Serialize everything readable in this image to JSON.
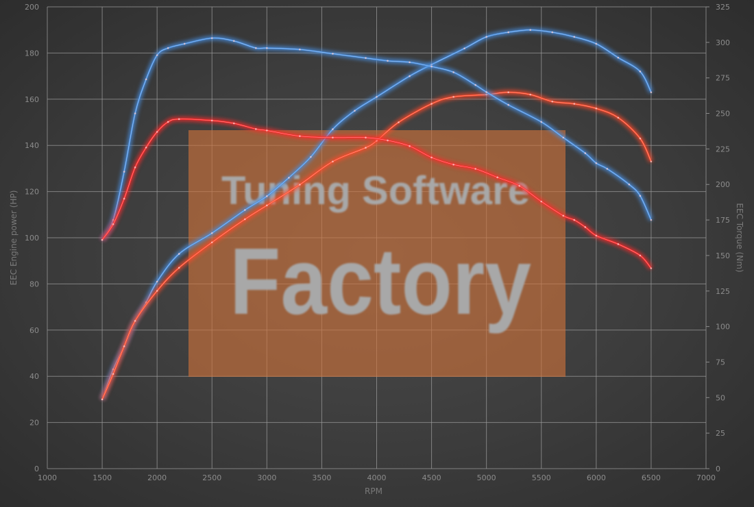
{
  "chart_data": {
    "type": "line",
    "title": "",
    "xlabel": "RPM",
    "ylabel": "EEC Engine power (HP)",
    "y2label": "EEC Torque (Nm)",
    "xlim": [
      1000,
      7000
    ],
    "ylim": [
      0,
      200
    ],
    "y2lim": [
      0,
      325
    ],
    "xticks": [
      1000,
      1500,
      2000,
      2500,
      3000,
      3500,
      4000,
      4500,
      5000,
      5500,
      6000,
      6500,
      7000
    ],
    "yticks": [
      0,
      20,
      40,
      60,
      80,
      100,
      120,
      140,
      160,
      180,
      200
    ],
    "y2ticks": [
      0,
      25,
      50,
      75,
      100,
      125,
      150,
      175,
      200,
      225,
      250,
      275,
      300,
      325
    ],
    "grid": true,
    "series": [
      {
        "axis": "left",
        "color": "#4a90e2",
        "x": [
          1500,
          1600,
          1700,
          1800,
          1900,
          2000,
          2200,
          2500,
          2800,
          3000,
          3200,
          3400,
          3600,
          3800,
          4000,
          4300,
          4500,
          4800,
          5000,
          5200,
          5400,
          5600,
          5800,
          6000,
          6200,
          6400,
          6500
        ],
        "y": [
          30,
          43,
          53,
          64,
          72,
          81,
          93,
          102,
          112,
          118,
          126,
          135,
          147,
          155,
          161,
          170,
          175,
          182,
          187,
          189,
          190,
          189,
          187,
          184,
          178,
          172,
          163
        ]
      },
      {
        "axis": "left",
        "color": "#ff4a2a",
        "x": [
          1500,
          1600,
          1700,
          1800,
          2000,
          2200,
          2500,
          2800,
          3000,
          3300,
          3600,
          3900,
          4000,
          4200,
          4500,
          4700,
          5000,
          5200,
          5400,
          5600,
          5800,
          6000,
          6200,
          6400,
          6500
        ],
        "y": [
          30,
          41,
          53,
          64,
          77,
          87,
          98,
          108,
          114,
          123,
          133,
          139,
          142,
          150,
          158,
          161,
          162,
          163,
          162,
          159,
          158,
          156,
          152,
          143,
          133
        ]
      },
      {
        "axis": "right",
        "color": "#4a90e2",
        "x": [
          1500,
          1600,
          1700,
          1800,
          1900,
          2000,
          2100,
          2250,
          2500,
          2700,
          2900,
          3000,
          3300,
          3600,
          3900,
          4100,
          4300,
          4500,
          4700,
          4900,
          5000,
          5200,
          5500,
          5700,
          5900,
          6000,
          6100,
          6300,
          6400,
          6500
        ],
        "y": [
          161,
          175,
          209,
          250,
          274,
          291,
          296,
          299,
          303,
          301,
          296,
          296,
          295,
          292,
          289,
          287,
          286,
          283,
          279,
          270,
          265,
          256,
          244,
          233,
          222,
          215,
          211,
          200,
          192,
          175
        ]
      },
      {
        "axis": "right",
        "color": "#ff2a2a",
        "x": [
          1500,
          1600,
          1700,
          1800,
          1900,
          2000,
          2100,
          2200,
          2500,
          2700,
          2900,
          3000,
          3300,
          3600,
          3900,
          4100,
          4300,
          4500,
          4700,
          4900,
          5100,
          5300,
          5500,
          5700,
          5800,
          5900,
          6000,
          6200,
          6400,
          6500
        ],
        "y": [
          161,
          172,
          190,
          212,
          226,
          237,
          244,
          246,
          245,
          243,
          239,
          238,
          234,
          233,
          233,
          231,
          227,
          219,
          214,
          211,
          205,
          199,
          188,
          178,
          175,
          170,
          164,
          158,
          150,
          141
        ]
      }
    ]
  },
  "watermark": {
    "line1": "Tuning Software",
    "line2": "Factory",
    "color": "#d0723a"
  }
}
